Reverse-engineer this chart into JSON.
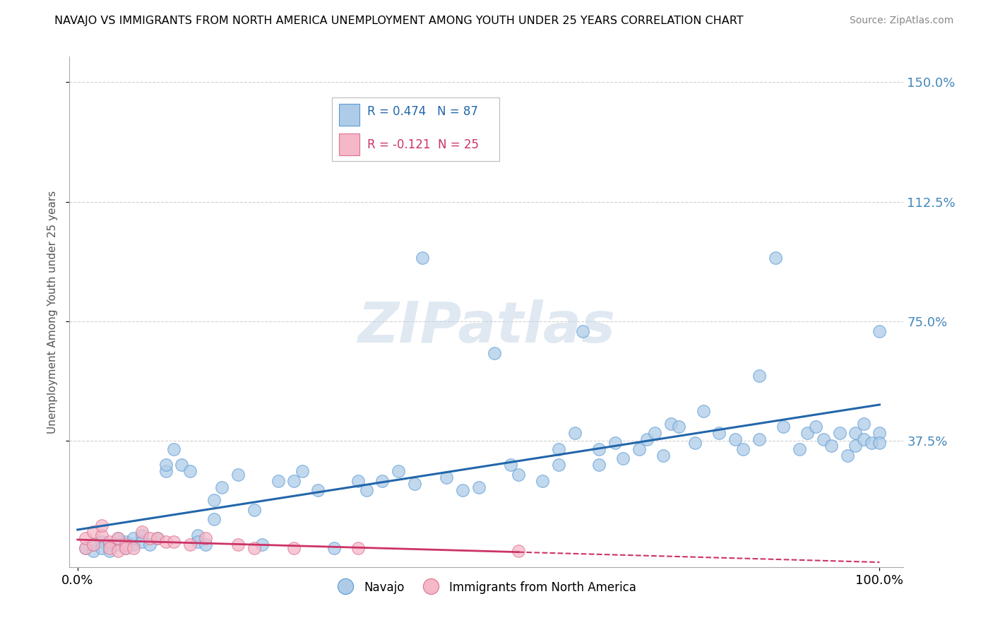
{
  "title": "NAVAJO VS IMMIGRANTS FROM NORTH AMERICA UNEMPLOYMENT AMONG YOUTH UNDER 25 YEARS CORRELATION CHART",
  "source": "Source: ZipAtlas.com",
  "ylabel": "Unemployment Among Youth under 25 years",
  "xlim": [
    -0.01,
    1.03
  ],
  "ylim": [
    -0.02,
    1.58
  ],
  "ytick_positions": [
    0.375,
    0.75,
    1.125,
    1.5
  ],
  "ytick_labels": [
    "37.5%",
    "75.0%",
    "112.5%",
    "150.0%"
  ],
  "xtick_positions": [
    0.0,
    1.0
  ],
  "xtick_labels": [
    "0.0%",
    "100.0%"
  ],
  "navajo_R": 0.474,
  "navajo_N": 87,
  "immigrants_R": -0.121,
  "immigrants_N": 25,
  "navajo_color": "#aecce8",
  "navajo_edge_color": "#5b9bd5",
  "immigrants_color": "#f4b8c8",
  "immigrants_edge_color": "#e07090",
  "navajo_line_color": "#2266aa",
  "immigrants_line_color": "#cc3366",
  "grid_color": "#d0d0d0",
  "watermark": "ZIPatlas",
  "navajo_x": [
    0.01,
    0.02,
    0.02,
    0.03,
    0.03,
    0.04,
    0.04,
    0.05,
    0.05,
    0.06,
    0.06,
    0.07,
    0.07,
    0.08,
    0.08,
    0.09,
    0.1,
    0.11,
    0.11,
    0.12,
    0.13,
    0.14,
    0.15,
    0.15,
    0.16,
    0.17,
    0.17,
    0.18,
    0.2,
    0.22,
    0.23,
    0.25,
    0.27,
    0.28,
    0.3,
    0.32,
    0.35,
    0.36,
    0.38,
    0.4,
    0.42,
    0.43,
    0.46,
    0.48,
    0.5,
    0.52,
    0.54,
    0.55,
    0.58,
    0.6,
    0.6,
    0.62,
    0.63,
    0.65,
    0.65,
    0.67,
    0.68,
    0.7,
    0.71,
    0.72,
    0.73,
    0.74,
    0.75,
    0.77,
    0.78,
    0.8,
    0.82,
    0.83,
    0.85,
    0.85,
    0.87,
    0.88,
    0.9,
    0.91,
    0.92,
    0.93,
    0.94,
    0.95,
    0.96,
    0.97,
    0.97,
    0.98,
    0.98,
    0.99,
    1.0,
    1.0,
    1.0
  ],
  "navajo_y": [
    0.04,
    0.03,
    0.05,
    0.06,
    0.04,
    0.05,
    0.03,
    0.07,
    0.05,
    0.06,
    0.04,
    0.05,
    0.07,
    0.08,
    0.06,
    0.05,
    0.07,
    0.28,
    0.3,
    0.35,
    0.3,
    0.28,
    0.08,
    0.06,
    0.05,
    0.13,
    0.19,
    0.23,
    0.27,
    0.16,
    0.05,
    0.25,
    0.25,
    0.28,
    0.22,
    0.04,
    0.25,
    0.22,
    0.25,
    0.28,
    0.24,
    0.95,
    0.26,
    0.22,
    0.23,
    0.65,
    0.3,
    0.27,
    0.25,
    0.35,
    0.3,
    0.4,
    0.72,
    0.35,
    0.3,
    0.37,
    0.32,
    0.35,
    0.38,
    0.4,
    0.33,
    0.43,
    0.42,
    0.37,
    0.47,
    0.4,
    0.38,
    0.35,
    0.58,
    0.38,
    0.95,
    0.42,
    0.35,
    0.4,
    0.42,
    0.38,
    0.36,
    0.4,
    0.33,
    0.36,
    0.4,
    0.38,
    0.43,
    0.37,
    0.4,
    0.37,
    0.72
  ],
  "immigrants_x": [
    0.01,
    0.01,
    0.02,
    0.02,
    0.03,
    0.03,
    0.04,
    0.04,
    0.05,
    0.05,
    0.06,
    0.06,
    0.07,
    0.08,
    0.09,
    0.1,
    0.11,
    0.12,
    0.14,
    0.16,
    0.2,
    0.22,
    0.27,
    0.35,
    0.55
  ],
  "immigrants_y": [
    0.04,
    0.07,
    0.05,
    0.09,
    0.08,
    0.11,
    0.06,
    0.04,
    0.03,
    0.07,
    0.05,
    0.04,
    0.04,
    0.09,
    0.07,
    0.07,
    0.06,
    0.06,
    0.05,
    0.07,
    0.05,
    0.04,
    0.04,
    0.04,
    0.03
  ],
  "legend_navajo_text": "R = 0.474   N = 87",
  "legend_immigrants_text": "R = -0.121  N = 25"
}
